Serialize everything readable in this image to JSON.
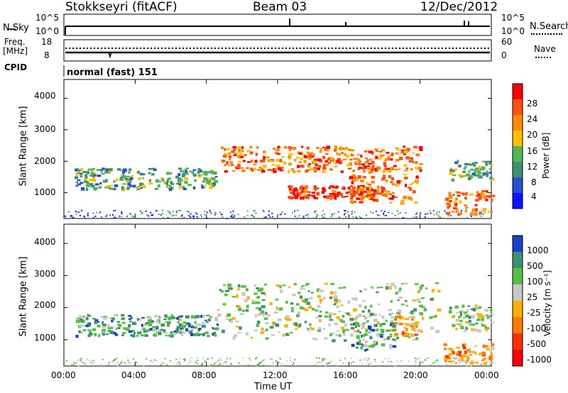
{
  "header": {
    "station": "Stokkseyri (fitACF)",
    "beam": "Beam 03",
    "date": "12/Dec/2012"
  },
  "noise_panel": {
    "left_label": "N.Sky",
    "right_label": "N.Search",
    "left_ticks": [
      "10^5",
      "10^0"
    ],
    "right_ticks": [
      "10^5",
      "10^0"
    ]
  },
  "freq_panel": {
    "left_label_1": "Freq.",
    "left_label_2": "[MHz]",
    "right_label": "Nave",
    "left_ticks": [
      "18",
      "8"
    ],
    "right_ticks": [
      "60",
      "0"
    ]
  },
  "cpid": {
    "label": "CPID",
    "text": "normal (fast) 151"
  },
  "chart_data": [
    {
      "type": "heatmap",
      "title": "Power",
      "ylabel": "Slant Range [km]",
      "xlabel": "",
      "ylim": [
        180,
        4600
      ],
      "yticks": [
        "4000",
        "3000",
        "2000",
        "1000"
      ],
      "colorbar_label": "Power [dB]",
      "colorbar_ticks": [
        "28",
        "24",
        "20",
        "16",
        "12",
        "8",
        "4"
      ],
      "colors": [
        "#0a14ff",
        "#2a4ecf",
        "#3f9070",
        "#55b55a",
        "#ffc000",
        "#ff8c00",
        "#ff5010",
        "#ff0000"
      ],
      "regions": [
        {
          "name": "band-early",
          "x": [
            0.6,
            8.6
          ],
          "y": [
            1150,
            1800
          ],
          "level": 3
        },
        {
          "name": "band-arc-upper",
          "x": [
            8.8,
            20.0
          ],
          "y": [
            1700,
            2500
          ],
          "level": 6
        },
        {
          "name": "band-arc-lower",
          "x": [
            12.5,
            17.5
          ],
          "y": [
            850,
            1250
          ],
          "level": 7
        },
        {
          "name": "band-late-rise",
          "x": [
            16.0,
            19.8
          ],
          "y": [
            700,
            1600
          ],
          "level": 6
        },
        {
          "name": "band-late",
          "x": [
            21.4,
            24.0
          ],
          "y": [
            350,
            1100
          ],
          "level": 6
        },
        {
          "name": "band-late-upper",
          "x": [
            21.6,
            24.0
          ],
          "y": [
            1450,
            2050
          ],
          "level": 3
        }
      ]
    },
    {
      "type": "heatmap",
      "title": "Velocity",
      "ylabel": "Slant Range [km]",
      "xlabel": "Time UT",
      "ylim": [
        180,
        4600
      ],
      "yticks": [
        "4000",
        "3000",
        "2000",
        "1000"
      ],
      "xticks": [
        "00:00",
        "04:00",
        "08:00",
        "12:00",
        "16:00",
        "20:00",
        "00:00"
      ],
      "colorbar_label": "Velocity [m s⁻¹]",
      "colorbar_ticks": [
        "1000",
        "500",
        "100",
        "25",
        "-25",
        "-100",
        "-500",
        "-1000"
      ],
      "colors": [
        "#1a40c8",
        "#3f9070",
        "#55c040",
        "#c8c8c8",
        "#ffb000",
        "#ff7a00",
        "#ff3000",
        "#ff0000"
      ],
      "regions": [
        {
          "name": "band-early",
          "x": [
            0.6,
            8.6
          ],
          "y": [
            1150,
            1800
          ],
          "level": 2
        },
        {
          "name": "ground-grey",
          "x": [
            8.5,
            21.0
          ],
          "y": [
            1000,
            2800
          ],
          "level": 3
        },
        {
          "name": "arc-green",
          "x": [
            16.0,
            18.5
          ],
          "y": [
            700,
            1600
          ],
          "level": 2
        },
        {
          "name": "arc-orange",
          "x": [
            18.5,
            19.8
          ],
          "y": [
            1100,
            1800
          ],
          "level": 5
        },
        {
          "name": "late-orange",
          "x": [
            21.3,
            24.0
          ],
          "y": [
            300,
            900
          ],
          "level": 5
        },
        {
          "name": "late-grey",
          "x": [
            21.6,
            24.0
          ],
          "y": [
            1300,
            2100
          ],
          "level": 3
        }
      ]
    }
  ]
}
